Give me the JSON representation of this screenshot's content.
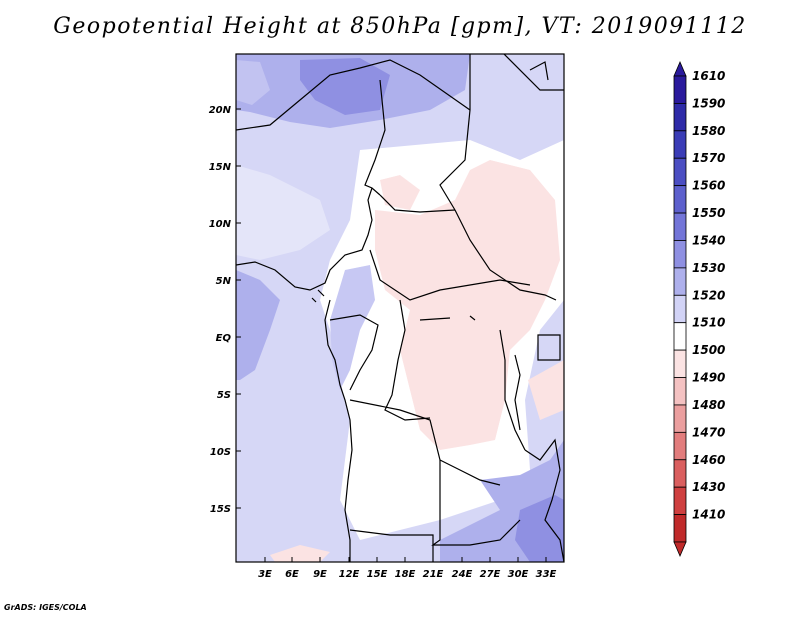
{
  "title": "Geopotential Height at 850hPa [gpm], VT: 2019091112",
  "credit": "GrADS: IGES/COLA",
  "lat_labels": [
    "20N",
    "15N",
    "10N",
    "5N",
    "EQ",
    "5S",
    "10S",
    "15S"
  ],
  "lon_labels": [
    "3E",
    "6E",
    "9E",
    "12E",
    "15E",
    "18E",
    "21E",
    "24E",
    "27E",
    "30E",
    "33E"
  ],
  "colorbar": {
    "labels": [
      "1610",
      "1590",
      "1580",
      "1570",
      "1560",
      "1550",
      "1540",
      "1530",
      "1520",
      "1510",
      "1500",
      "1490",
      "1480",
      "1470",
      "1460",
      "1430",
      "1410"
    ],
    "colors": [
      "#2a1a9c",
      "#2e2ba8",
      "#3a3cb6",
      "#4b4ec2",
      "#5d60cd",
      "#7375d8",
      "#8f90e2",
      "#aeb0ec",
      "#d2d3f6",
      "#ffffff",
      "#fbe3e3",
      "#f4c2c2",
      "#eb9f9f",
      "#e27d7d",
      "#da5f5f",
      "#cf4040",
      "#c02a2a"
    ]
  }
}
